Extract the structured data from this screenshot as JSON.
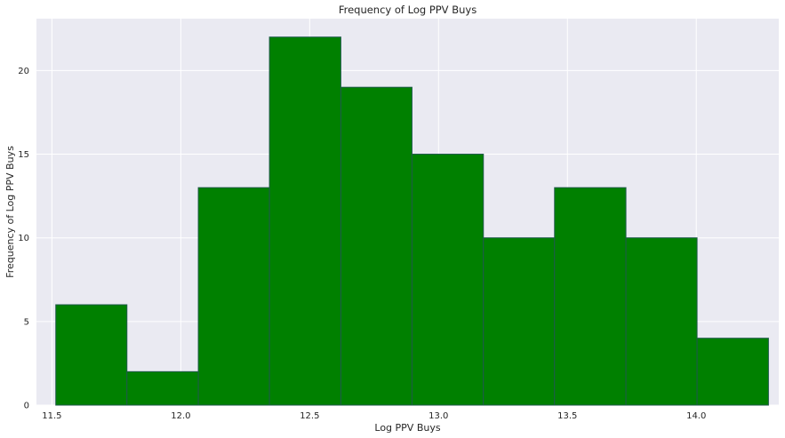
{
  "chart_data": {
    "type": "bar",
    "title": "Frequency of Log PPV Buys",
    "xlabel": "Log PPV Buys",
    "ylabel": "Frequency of Log PPV Buys",
    "bin_edges": [
      11.515,
      11.791,
      12.068,
      12.344,
      12.621,
      12.897,
      13.174,
      13.45,
      13.727,
      14.003,
      14.28
    ],
    "values": [
      6,
      2,
      13,
      22,
      19,
      15,
      10,
      13,
      10,
      4
    ],
    "xlim": [
      11.44,
      14.32
    ],
    "ylim": [
      0,
      23.1
    ],
    "xticks": [
      11.5,
      12.0,
      12.5,
      13.0,
      13.5,
      14.0
    ],
    "xtick_labels": [
      "11.5",
      "12.0",
      "12.5",
      "13.0",
      "13.5",
      "14.0"
    ],
    "yticks": [
      0,
      5,
      10,
      15,
      20
    ],
    "ytick_labels": [
      "0",
      "5",
      "10",
      "15",
      "20"
    ],
    "grid": true,
    "colors": {
      "bar_fill": "#008000",
      "bar_edge": "#1f5a4a",
      "plot_background": "#eaeaf2",
      "grid": "#ffffff"
    }
  }
}
